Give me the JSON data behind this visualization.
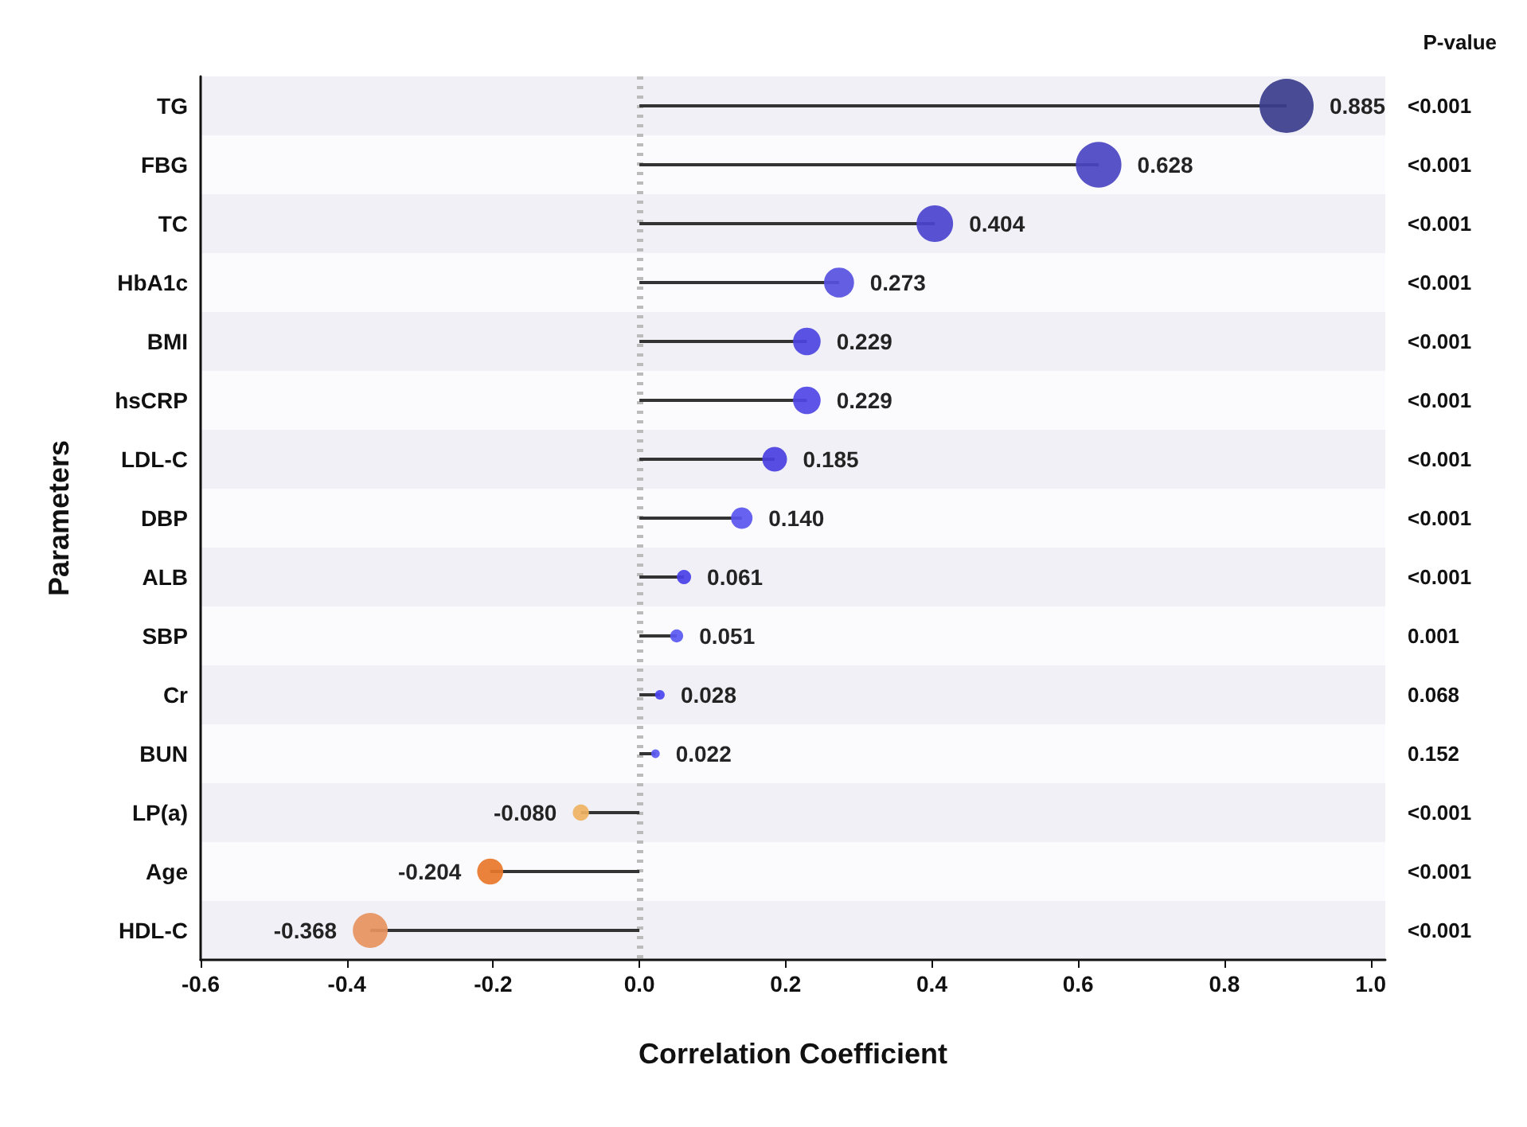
{
  "chart_data": {
    "type": "lollipop",
    "orientation": "horizontal",
    "xlabel": "Correlation Coefficient",
    "ylabel": "Parameters",
    "y2label": "P-value",
    "categories": [
      "TG",
      "FBG",
      "TC",
      "HbA1c",
      "BMI",
      "hsCRP",
      "LDL-C",
      "DBP",
      "ALB",
      "SBP",
      "Cr",
      "BUN",
      "LP(a)",
      "Age",
      "HDL-C"
    ],
    "y2_categories": [
      "<0.001",
      "<0.001",
      "<0.001",
      "<0.001",
      "<0.001",
      "<0.001",
      "<0.001",
      "<0.001",
      "<0.001",
      "0.001",
      "0.068",
      "0.152",
      "<0.001",
      "<0.001",
      "<0.001"
    ],
    "values": [
      0.885,
      0.628,
      0.404,
      0.273,
      0.229,
      0.229,
      0.185,
      0.14,
      0.061,
      0.051,
      0.028,
      0.022,
      -0.08,
      -0.204,
      -0.368
    ],
    "sizes": [
      1,
      0.71,
      0.456,
      0.308,
      0.259,
      0.259,
      0.209,
      0.158,
      0.069,
      0.058,
      0.032,
      0.025,
      0.09,
      0.231,
      0.416
    ],
    "value_labels": [
      "0.885",
      "0.628",
      "0.404",
      "0.273",
      "0.229",
      "0.229",
      "0.185",
      "0.140",
      "0.061",
      "0.051",
      "0.028",
      "0.022",
      "-0.080",
      "-0.204",
      "-0.368"
    ],
    "colors": [
      "#3b3d8c",
      "#4a45c2",
      "#4b44cf",
      "#5650df",
      "#4c44df",
      "#5046e6",
      "#4a3fdf",
      "#5a55ef",
      "#4a40e8",
      "#5a58f3",
      "#4a44ef",
      "#5a5af3",
      "#f0b362",
      "#e8772a",
      "#e8935e"
    ],
    "xlim": [
      -0.6,
      1.02
    ],
    "xticks": [
      {
        "value": -0.6,
        "label": "-0.6"
      },
      {
        "value": -0.4,
        "label": "-0.4"
      },
      {
        "value": -0.2,
        "label": "-0.2"
      },
      {
        "value": 0,
        "label": "0.0"
      },
      {
        "value": 0.2,
        "label": "0.2"
      },
      {
        "value": 0.4,
        "label": "0.4"
      },
      {
        "value": 0.6,
        "label": "0.6"
      },
      {
        "value": 0.8,
        "label": "0.8"
      },
      {
        "value": 1,
        "label": "1.0"
      }
    ],
    "ref_lines": [
      {
        "axis": "x",
        "value": 0,
        "color": "#bbbbbb",
        "line_style": "dotted"
      }
    ]
  }
}
